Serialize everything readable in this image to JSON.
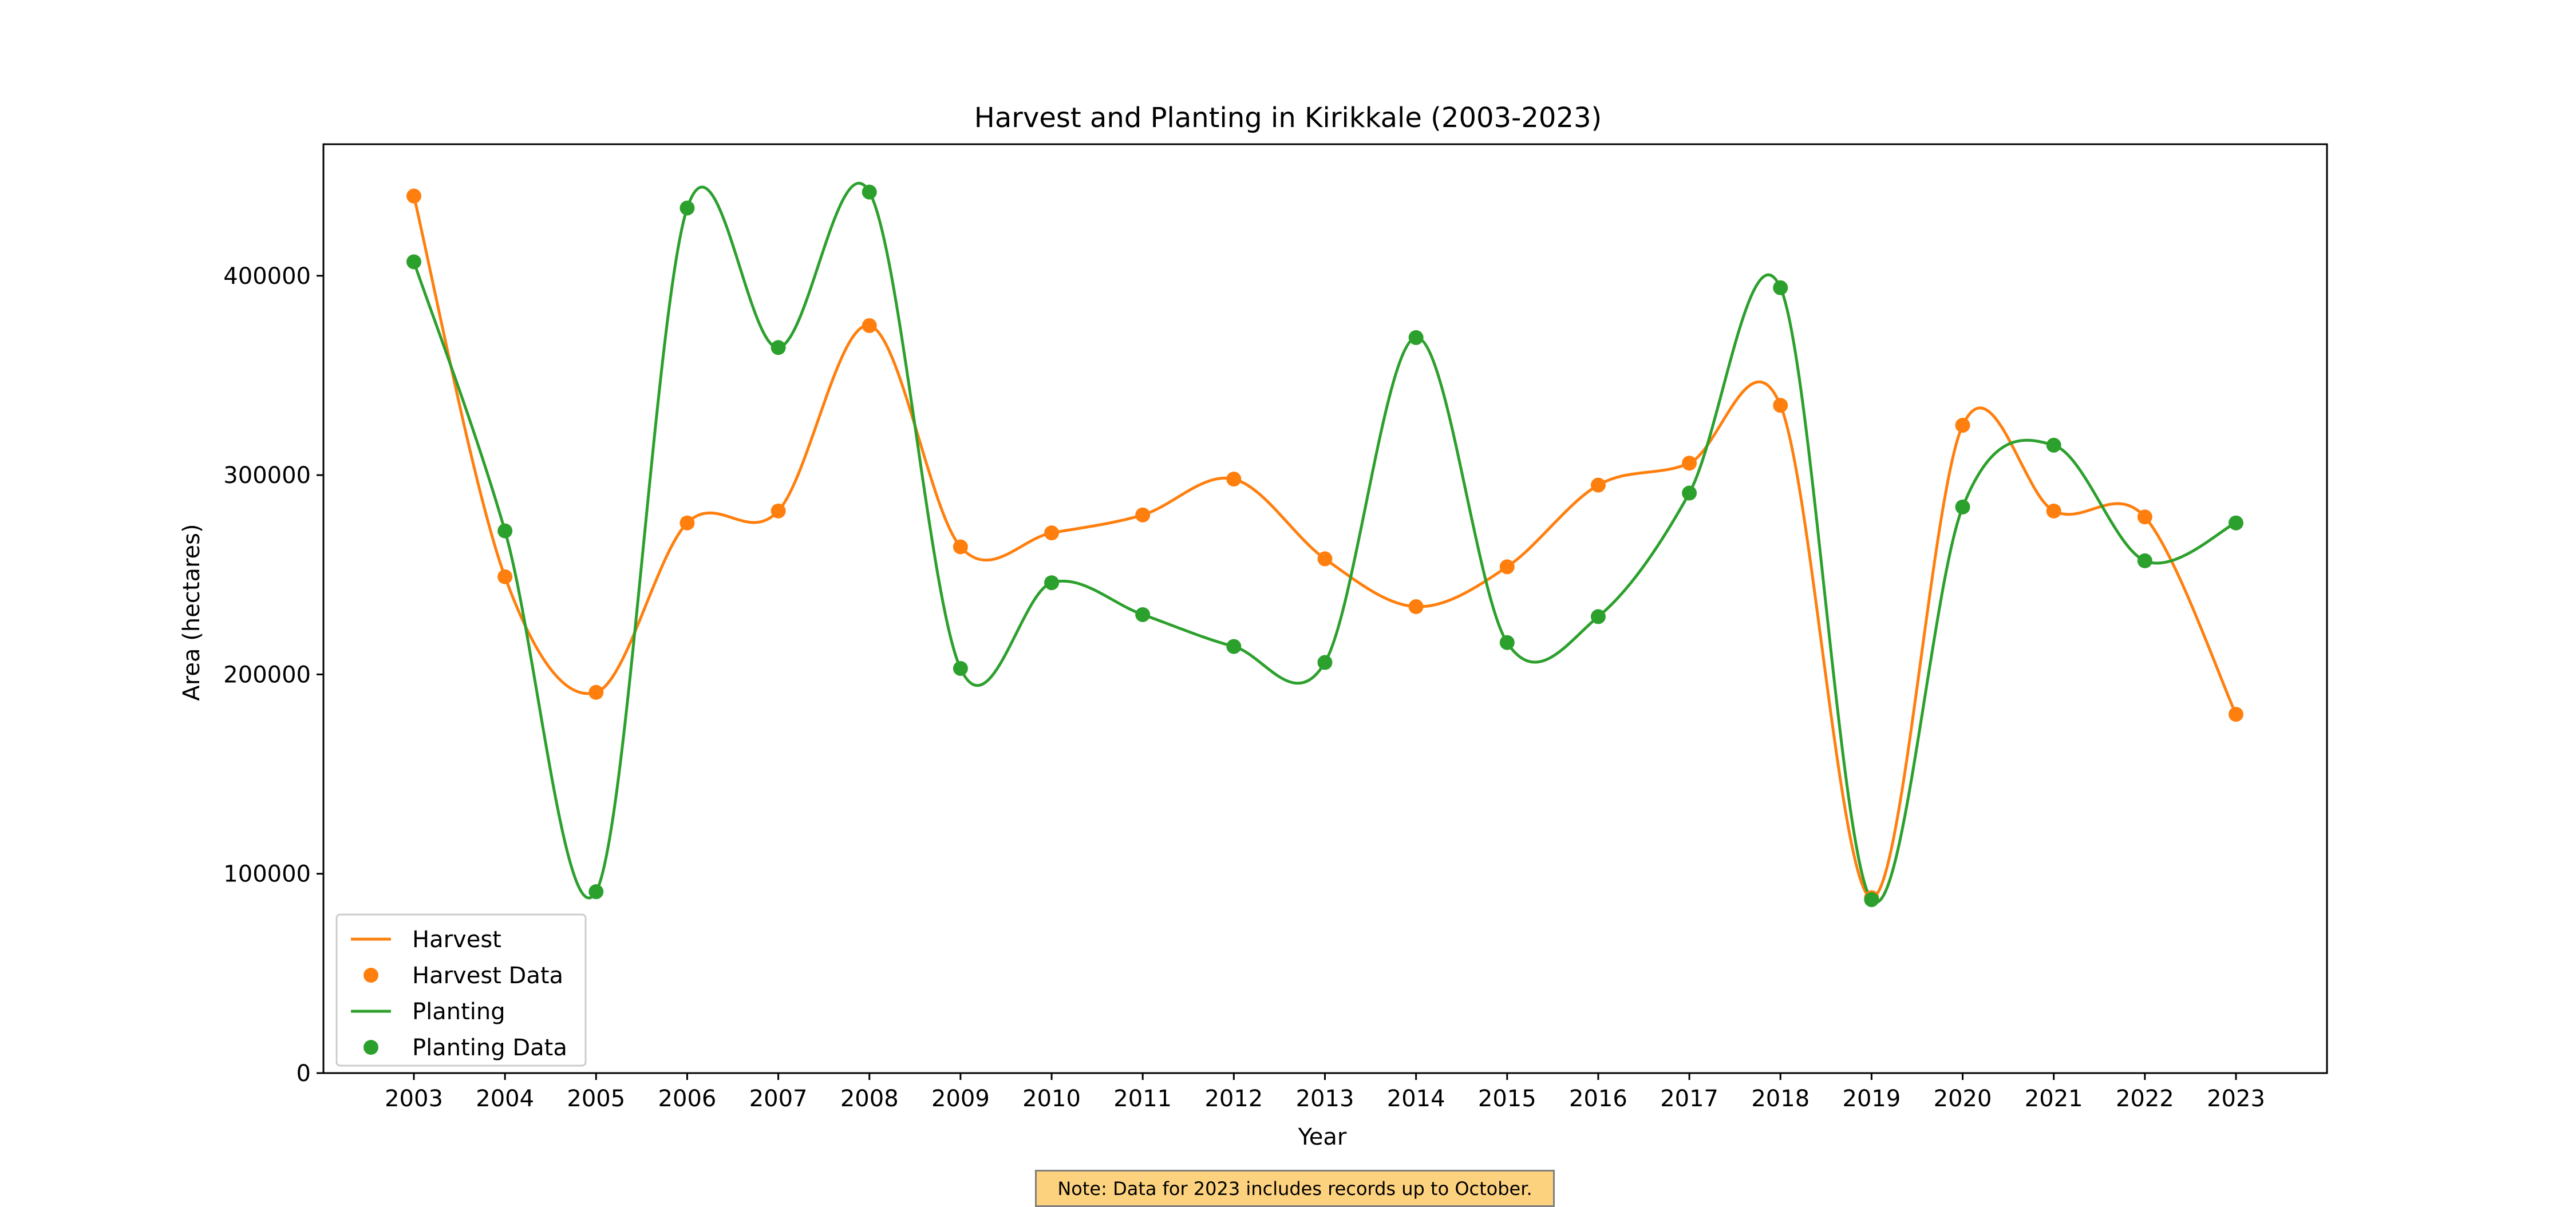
{
  "chart_data": {
    "type": "line",
    "title": "Harvest and Planting in Kirikkale (2003-2023)",
    "xlabel": "Year",
    "ylabel": "Area (hectares)",
    "categories": [
      "2003",
      "2004",
      "2005",
      "2006",
      "2007",
      "2008",
      "2009",
      "2010",
      "2011",
      "2012",
      "2013",
      "2014",
      "2015",
      "2016",
      "2017",
      "2018",
      "2019",
      "2020",
      "2021",
      "2022",
      "2023"
    ],
    "ylim": [
      0,
      466000
    ],
    "yticks": [
      0,
      100000,
      200000,
      300000,
      400000
    ],
    "grid": false,
    "legend_position": "bottom-left",
    "series": [
      {
        "name": "Harvest",
        "marker_name": "Harvest Data",
        "color": "#ff7f0e",
        "values": [
          440000,
          249000,
          191000,
          276000,
          282000,
          375000,
          264000,
          271000,
          280000,
          298000,
          258000,
          234000,
          254000,
          295000,
          306000,
          335000,
          88000,
          325000,
          282000,
          279000,
          180000
        ]
      },
      {
        "name": "Planting",
        "marker_name": "Planting Data",
        "color": "#2ca02c",
        "values": [
          407000,
          272000,
          91000,
          434000,
          364000,
          442000,
          203000,
          246000,
          230000,
          214000,
          206000,
          369000,
          216000,
          229000,
          291000,
          394000,
          87000,
          284000,
          315000,
          257000,
          276000
        ]
      }
    ]
  },
  "note": "Note: Data for 2023 includes records up to October."
}
